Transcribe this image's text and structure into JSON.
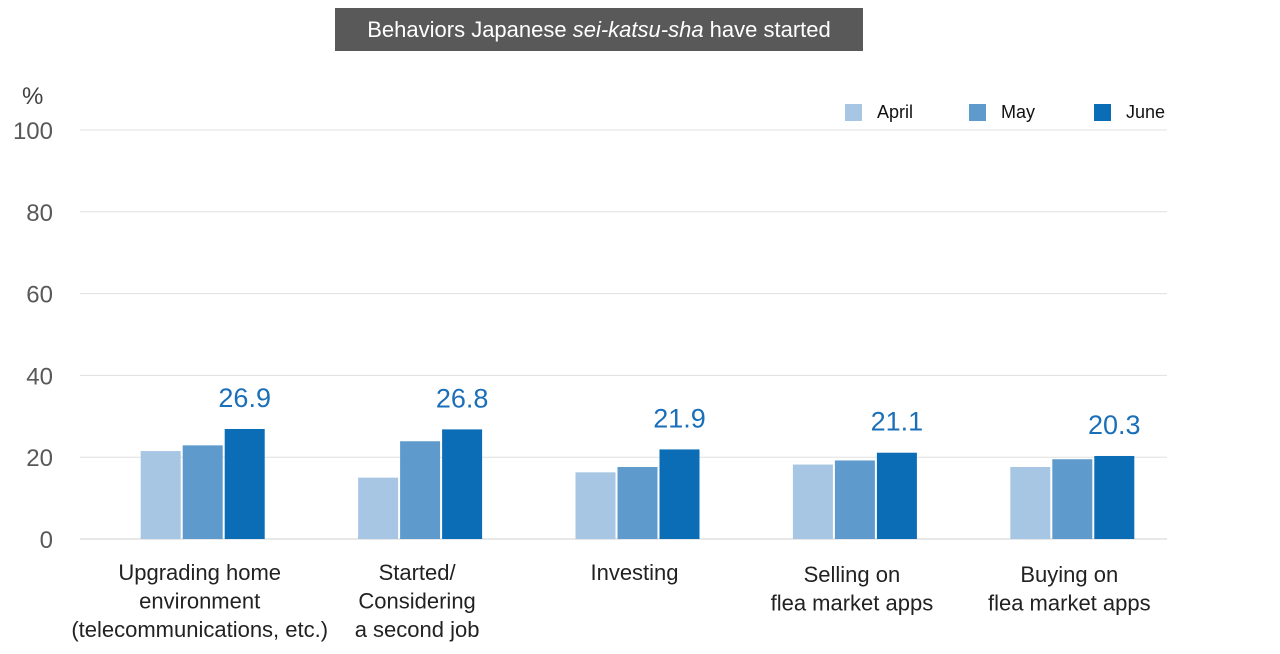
{
  "chart_data": {
    "type": "bar",
    "title_parts": [
      "Behaviors Japanese ",
      "sei-katsu-sha",
      " have started"
    ],
    "unit_label": "%",
    "ylim": [
      0,
      100
    ],
    "yticks": [
      0,
      20,
      40,
      60,
      80,
      100
    ],
    "grid": true,
    "legend_position": "top-right",
    "categories": [
      [
        "Upgrading home",
        "environment",
        "(telecommunications, etc.)"
      ],
      [
        "Started/",
        "Considering",
        "a second job"
      ],
      [
        "Investing"
      ],
      [
        "Selling on",
        "flea market apps"
      ],
      [
        "Buying on",
        "flea market apps"
      ]
    ],
    "series": [
      {
        "name": "April",
        "color": "#a7c6e3",
        "values": [
          21.5,
          15.0,
          16.3,
          18.2,
          17.6
        ]
      },
      {
        "name": "May",
        "color": "#5e9bcc",
        "values": [
          22.9,
          23.9,
          17.6,
          19.2,
          19.5
        ]
      },
      {
        "name": "June",
        "color": "#0a6db5",
        "values": [
          26.9,
          26.8,
          21.9,
          21.1,
          20.3
        ]
      }
    ],
    "data_labels": [
      "26.9",
      "26.8",
      "21.9",
      "21.1",
      "20.3"
    ],
    "gridline_color": "#e0e0e0",
    "label_color": "#1a6fb8"
  }
}
